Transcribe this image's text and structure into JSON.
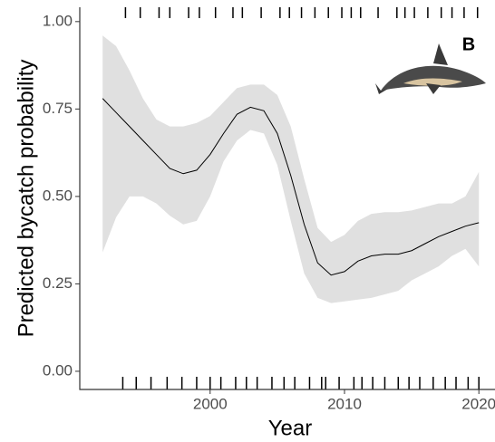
{
  "chart_data": {
    "type": "line",
    "label": "B",
    "xlabel": "Year",
    "ylabel": "Predicted bycatch probability",
    "x": [
      1992,
      1993,
      1994,
      1995,
      1996,
      1997,
      1998,
      1999,
      2000,
      2001,
      2002,
      2003,
      2004,
      2005,
      2006,
      2007,
      2008,
      2009,
      2010,
      2011,
      2012,
      2013,
      2014,
      2015,
      2016,
      2017,
      2018,
      2019,
      2020
    ],
    "values": [
      0.78,
      0.74,
      0.7,
      0.66,
      0.62,
      0.58,
      0.565,
      0.575,
      0.62,
      0.68,
      0.735,
      0.755,
      0.745,
      0.68,
      0.56,
      0.42,
      0.31,
      0.275,
      0.285,
      0.315,
      0.33,
      0.335,
      0.335,
      0.345,
      0.365,
      0.385,
      0.4,
      0.415,
      0.425
    ],
    "upper": [
      0.96,
      0.93,
      0.86,
      0.78,
      0.72,
      0.7,
      0.7,
      0.71,
      0.73,
      0.77,
      0.81,
      0.82,
      0.82,
      0.79,
      0.7,
      0.55,
      0.41,
      0.37,
      0.39,
      0.43,
      0.45,
      0.455,
      0.455,
      0.46,
      0.47,
      0.48,
      0.48,
      0.5,
      0.57
    ],
    "lower": [
      0.34,
      0.44,
      0.5,
      0.5,
      0.48,
      0.445,
      0.42,
      0.43,
      0.5,
      0.6,
      0.66,
      0.69,
      0.68,
      0.59,
      0.43,
      0.28,
      0.21,
      0.195,
      0.2,
      0.205,
      0.21,
      0.22,
      0.23,
      0.26,
      0.28,
      0.3,
      0.33,
      0.35,
      0.3
    ],
    "color": "#000000",
    "band_color": "#e0e0e0",
    "rug_top": [
      1993.7,
      1994.8,
      1996.2,
      1997.0,
      1998.4,
      1999.2,
      2000.4,
      2001.7,
      2002.4,
      2003.8,
      2005.2,
      2005.9,
      2006.8,
      2007.8,
      2008.8,
      2009.8,
      2010.5,
      2011.2,
      2012.5,
      2013.9,
      2014.5,
      2015.2,
      2016.2,
      2017.2,
      2018.0,
      2018.9,
      2019.9
    ],
    "rug_bottom": [
      1993.5,
      1994.5,
      1995.6,
      1996.8,
      1997.9,
      1999.0,
      2000.0,
      2000.8,
      2001.9,
      2002.7,
      2003.5,
      2004.6,
      2005.5,
      2006.3,
      2007.4,
      2008.3,
      2008.6,
      2009.6,
      2010.7,
      2011.3,
      2012.1,
      2013.0,
      2014.0,
      2014.8,
      2015.6,
      2016.6,
      2017.5,
      2018.3,
      2019.2,
      2020.0
    ],
    "xlim": [
      1990.3,
      2021.2
    ],
    "ylim": [
      -0.052,
      1.041
    ],
    "xticks": [
      2000,
      2010,
      2020
    ],
    "yticks": [
      {
        "value": 0,
        "label": "0.00"
      },
      0.25,
      {
        "value": 0.5,
        "label": "0.50"
      },
      0.75,
      {
        "value": 1,
        "label": "1.00"
      }
    ]
  }
}
